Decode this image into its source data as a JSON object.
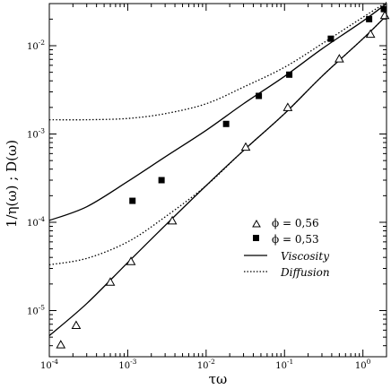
{
  "chart_data": {
    "type": "scatter",
    "title": "",
    "xlabel": "τω",
    "ylabel": "1/η(ω) ; D(ω)",
    "x_scale": "log",
    "y_scale": "log",
    "xlim": [
      0.0001,
      2
    ],
    "ylim": [
      3e-06,
      0.03
    ],
    "grid": false,
    "legend_position": "right-middle",
    "x_ticks": [
      {
        "value": 0.0001,
        "base": "10",
        "exp": "-4"
      },
      {
        "value": 0.001,
        "base": "10",
        "exp": "-3"
      },
      {
        "value": 0.01,
        "base": "10",
        "exp": "-2"
      },
      {
        "value": 0.1,
        "base": "10",
        "exp": "-1"
      },
      {
        "value": 1,
        "base": "10",
        "exp": "0"
      }
    ],
    "y_ticks": [
      {
        "value": 1e-05,
        "base": "10",
        "exp": "-5"
      },
      {
        "value": 0.0001,
        "base": "10",
        "exp": "-4"
      },
      {
        "value": 0.001,
        "base": "10",
        "exp": "-3"
      },
      {
        "value": 0.01,
        "base": "10",
        "exp": "-2"
      }
    ],
    "series": [
      {
        "name": "ϕ = 0,56",
        "marker": "open-triangle",
        "points": [
          [
            0.00014,
            4.1e-06
          ],
          [
            0.00022,
            6.8e-06
          ],
          [
            0.0006,
            2.1e-05
          ],
          [
            0.0011,
            3.6e-05
          ],
          [
            0.0037,
            0.000104
          ],
          [
            0.032,
            0.00071
          ],
          [
            0.11,
            0.002
          ],
          [
            0.5,
            0.0071
          ],
          [
            1.25,
            0.0135
          ],
          [
            1.9,
            0.022
          ]
        ]
      },
      {
        "name": "ϕ = 0,53",
        "marker": "filled-square",
        "points": [
          [
            0.00115,
            0.000175
          ],
          [
            0.0027,
            0.0003
          ],
          [
            0.018,
            0.0013
          ],
          [
            0.047,
            0.0027
          ],
          [
            0.115,
            0.0047
          ],
          [
            0.39,
            0.012
          ],
          [
            1.2,
            0.02
          ],
          [
            1.85,
            0.026
          ]
        ]
      },
      {
        "name": "Viscosity",
        "line_style": "solid",
        "points": [
          [
            0.0001,
            5.2e-06
          ],
          [
            0.0003,
            1.2e-05
          ],
          [
            0.001,
            3.5e-05
          ],
          [
            0.003,
            9.2e-05
          ],
          [
            0.01,
            0.00026
          ],
          [
            0.03,
            0.00065
          ],
          [
            0.1,
            0.0017
          ],
          [
            0.3,
            0.0045
          ],
          [
            1,
            0.012
          ],
          [
            2,
            0.022
          ]
        ]
      },
      {
        "name": "Viscosity",
        "line_style": "solid",
        "points": [
          [
            0.0001,
            0.000105
          ],
          [
            0.0003,
            0.00015
          ],
          [
            0.001,
            0.00029
          ],
          [
            0.003,
            0.00055
          ],
          [
            0.01,
            0.0011
          ],
          [
            0.03,
            0.0022
          ],
          [
            0.1,
            0.0045
          ],
          [
            0.3,
            0.0092
          ],
          [
            1,
            0.019
          ],
          [
            2,
            0.03
          ]
        ]
      },
      {
        "name": "Diffusion",
        "line_style": "dotted",
        "points": [
          [
            0.0001,
            3.3e-05
          ],
          [
            0.0003,
            3.9e-05
          ],
          [
            0.001,
            6e-05
          ],
          [
            0.003,
            0.000115
          ],
          [
            0.01,
            0.00026
          ],
          [
            0.03,
            0.00065
          ],
          [
            0.1,
            0.0017
          ],
          [
            0.3,
            0.0045
          ],
          [
            1,
            0.012
          ],
          [
            2,
            0.022
          ]
        ]
      },
      {
        "name": "Diffusion",
        "line_style": "dotted",
        "points": [
          [
            0.0001,
            0.00145
          ],
          [
            0.0003,
            0.00145
          ],
          [
            0.001,
            0.0015
          ],
          [
            0.003,
            0.0017
          ],
          [
            0.01,
            0.0022
          ],
          [
            0.03,
            0.0034
          ],
          [
            0.1,
            0.0057
          ],
          [
            0.3,
            0.0105
          ],
          [
            1,
            0.021
          ],
          [
            2,
            0.031
          ]
        ]
      }
    ],
    "legend": [
      {
        "marker": "open-triangle",
        "label": "ϕ = 0,56"
      },
      {
        "marker": "filled-square",
        "label": "ϕ = 0,53"
      },
      {
        "line_style": "solid",
        "label": "Viscosity"
      },
      {
        "line_style": "dotted",
        "label": "Diffusion"
      }
    ]
  }
}
